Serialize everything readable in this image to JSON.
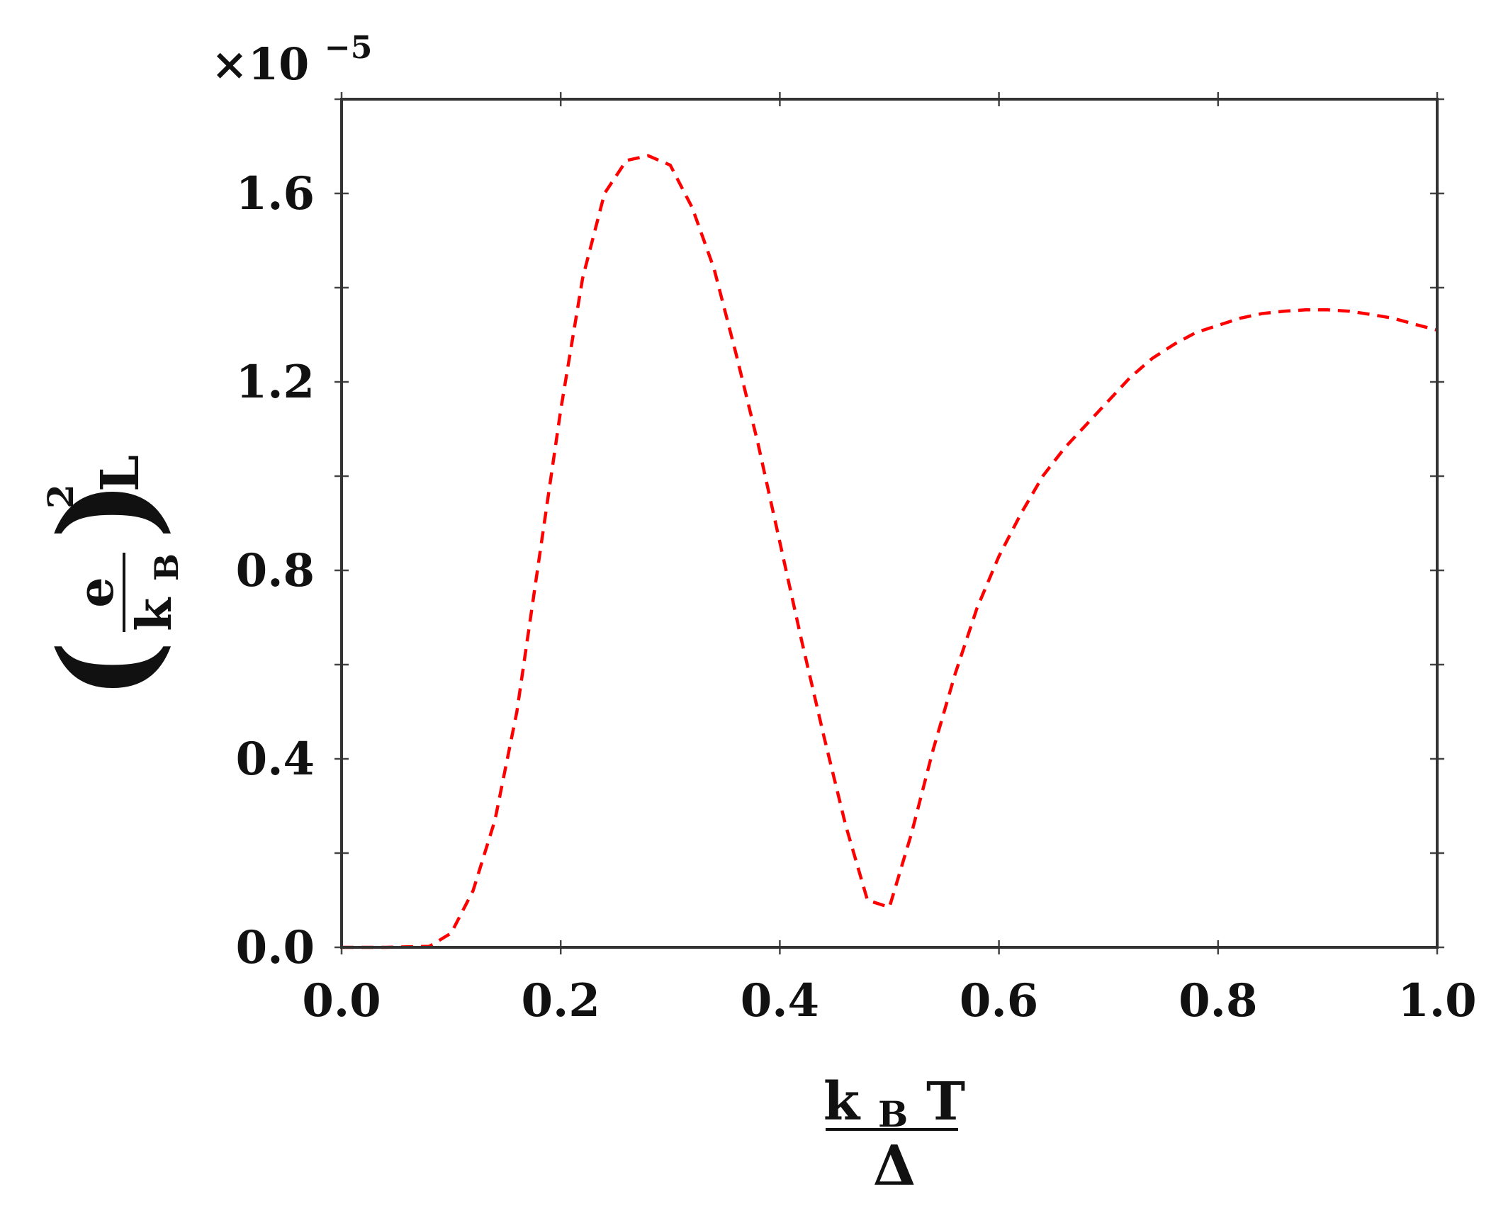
{
  "chart_data": {
    "type": "line",
    "title": "",
    "xlabel": {
      "numerator": "k",
      "numerator_sub": "B",
      "numerator_tail": "T",
      "denominator": "Δ"
    },
    "ylabel": {
      "open": "(",
      "numerator": "e",
      "denominator": "k",
      "denominator_sub": "B",
      "close": ")",
      "power": "2",
      "tail": "L"
    },
    "y_multiplier": {
      "prefix": "×10",
      "exponent": "−5"
    },
    "xlim": [
      0.0,
      1.0
    ],
    "ylim": [
      0.0,
      1.8
    ],
    "xticks": [
      0.0,
      0.2,
      0.4,
      0.6,
      0.8,
      1.0
    ],
    "xtick_labels": [
      "0.0",
      "0.2",
      "0.4",
      "0.6",
      "0.8",
      "1.0"
    ],
    "yticks_major": [
      0.0,
      0.4,
      0.8,
      1.2,
      1.6
    ],
    "ytick_labels": [
      "0.0",
      "0.4",
      "0.8",
      "1.2",
      "1.6"
    ],
    "yticks_minor": [
      0.2,
      0.6,
      1.0,
      1.4,
      1.8
    ],
    "grid": false,
    "series": [
      {
        "color": "#ff0000",
        "line_style": "dashed",
        "x": [
          0.0,
          0.04,
          0.08,
          0.1,
          0.12,
          0.14,
          0.16,
          0.18,
          0.2,
          0.22,
          0.24,
          0.26,
          0.28,
          0.3,
          0.32,
          0.34,
          0.36,
          0.38,
          0.4,
          0.42,
          0.44,
          0.46,
          0.48,
          0.5,
          0.52,
          0.54,
          0.56,
          0.58,
          0.6,
          0.62,
          0.64,
          0.66,
          0.68,
          0.7,
          0.72,
          0.74,
          0.76,
          0.78,
          0.8,
          0.82,
          0.84,
          0.86,
          0.88,
          0.9,
          0.92,
          0.94,
          0.96,
          0.98,
          1.0
        ],
        "y": [
          0.0,
          0.0,
          0.002,
          0.03,
          0.12,
          0.27,
          0.5,
          0.82,
          1.14,
          1.42,
          1.6,
          1.67,
          1.68,
          1.66,
          1.57,
          1.44,
          1.26,
          1.07,
          0.86,
          0.65,
          0.45,
          0.26,
          0.1,
          0.085,
          0.24,
          0.42,
          0.58,
          0.72,
          0.83,
          0.92,
          1.0,
          1.06,
          1.11,
          1.16,
          1.21,
          1.25,
          1.28,
          1.305,
          1.32,
          1.335,
          1.345,
          1.35,
          1.353,
          1.353,
          1.35,
          1.343,
          1.335,
          1.322,
          1.31
        ]
      }
    ]
  }
}
